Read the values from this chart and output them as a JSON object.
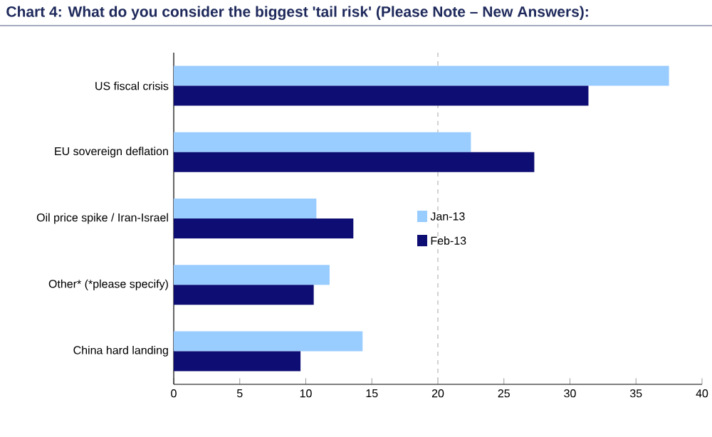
{
  "chart_data": {
    "type": "bar",
    "orientation": "horizontal",
    "title": "Chart 4: What do you consider the biggest 'tail risk' (Please Note – New Answers):",
    "categories": [
      "US fiscal crisis",
      "EU sovereign deflation",
      "Oil price spike / Iran-Israel",
      "Other* (*please specify)",
      "China hard landing"
    ],
    "series": [
      {
        "name": "Jan-13",
        "color": "#99ccff",
        "values": [
          37.5,
          22.5,
          10.8,
          11.8,
          14.3
        ]
      },
      {
        "name": "Feb-13",
        "color": "#0d0d73",
        "values": [
          31.4,
          27.3,
          13.6,
          10.6,
          9.6
        ]
      }
    ],
    "xlim": [
      0,
      40
    ],
    "xticks": [
      0,
      5,
      10,
      15,
      20,
      25,
      30,
      35,
      40
    ],
    "ref_lines": [
      {
        "axis": "x",
        "value": 20,
        "line_style": "dashed",
        "color": "#c8c8c8"
      }
    ],
    "legend": "right"
  }
}
